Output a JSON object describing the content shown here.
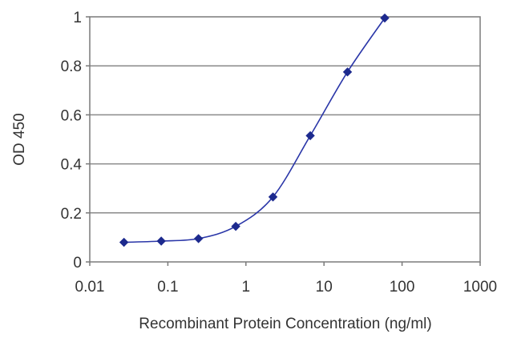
{
  "chart_data": {
    "type": "line",
    "title": "",
    "xlabel": "Recombinant Protein Concentration (ng/ml)",
    "ylabel": "OD 450",
    "x_scale": "log",
    "xlim": [
      0.01,
      1000
    ],
    "ylim": [
      0,
      1
    ],
    "x_ticks": [
      "0.01",
      "0.1",
      "1",
      "10",
      "100",
      "1000"
    ],
    "y_ticks": [
      "0",
      "0.2",
      "0.4",
      "0.6",
      "0.8",
      "1"
    ],
    "grid": "horizontal",
    "legend": "none",
    "series": [
      {
        "x": [
          0.0274,
          0.0823,
          0.247,
          0.741,
          2.22,
          6.67,
          20,
          60
        ],
        "y": [
          0.08,
          0.085,
          0.095,
          0.145,
          0.265,
          0.515,
          0.775,
          0.995
        ],
        "color": "#2a36a8",
        "marker": "diamond"
      }
    ]
  }
}
